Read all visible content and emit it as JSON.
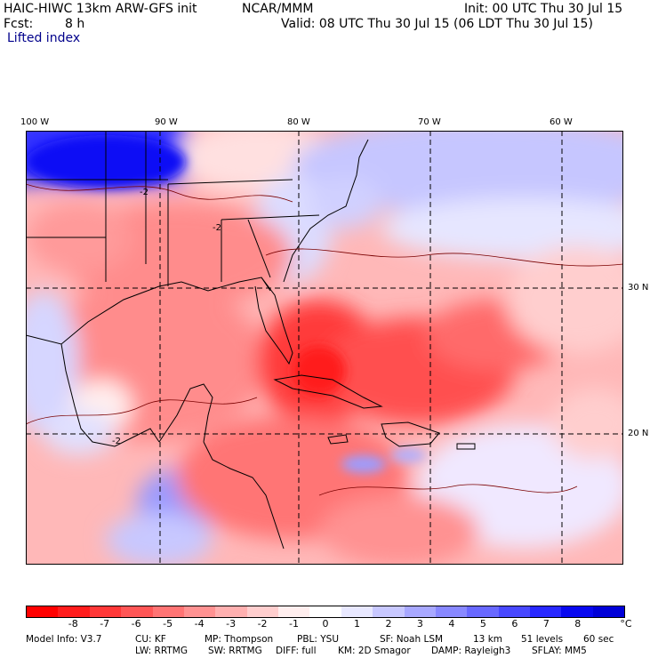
{
  "header": {
    "model": "HAIC-HIWC 13km ARW-GFS init",
    "org": "NCAR/MMM",
    "init": "Init: 00 UTC Thu 30 Jul 15",
    "fcst_label": "Fcst:",
    "fcst_value": "8 h",
    "valid": "Valid: 08 UTC Thu 30 Jul 15 (06 LDT Thu 30 Jul 15)",
    "field": "Lifted index"
  },
  "map": {
    "lon_labels": [
      "100 W",
      "90 W",
      "80 W",
      "70 W",
      "60 W"
    ],
    "lat_labels": [
      "30 N",
      "20 N"
    ],
    "contour_label": "-2"
  },
  "colorbar": {
    "colors": [
      "#ff0000",
      "#ff1c1c",
      "#ff3838",
      "#ff5656",
      "#ff7474",
      "#ff9292",
      "#ffb0b0",
      "#ffcece",
      "#ffeeee",
      "#ffffff",
      "#e8e8ff",
      "#c8c8ff",
      "#a8a8ff",
      "#8888ff",
      "#6868ff",
      "#4848ff",
      "#2828ff",
      "#0808f0",
      "#0000d8"
    ],
    "ticks": [
      "-8",
      "-7",
      "-6",
      "-5",
      "-4",
      "-3",
      "-2",
      "-1",
      "0",
      "1",
      "2",
      "3",
      "4",
      "5",
      "6",
      "7",
      "8"
    ],
    "unit": "°C"
  },
  "footer": {
    "line1": [
      "Model Info: V3.7",
      "CU: KF",
      "MP: Thompson",
      "PBL: YSU",
      "SF: Noah LSM",
      "13 km",
      "51 levels",
      "60 sec"
    ],
    "line2": [
      "LW: RRTMG",
      "SW: RRTMG",
      "DIFF: full",
      "KM: 2D Smagor",
      "DAMP: Rayleigh3",
      "SFLAY: MM5"
    ]
  }
}
